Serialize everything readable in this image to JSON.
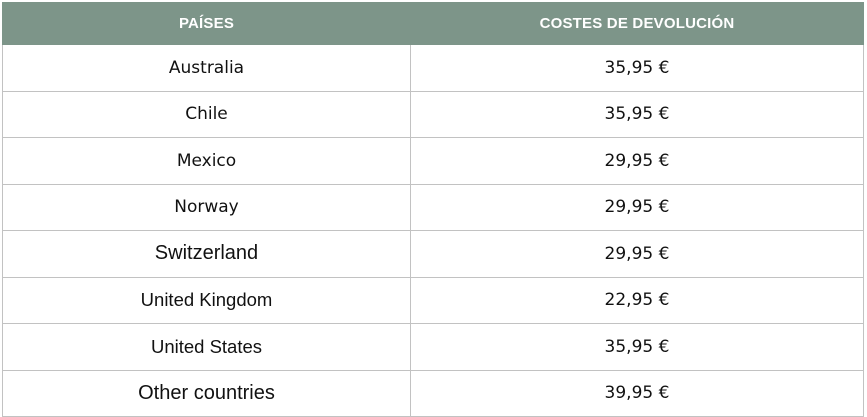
{
  "table": {
    "headers": {
      "country": "PAÍSES",
      "cost": "COSTES DE DEVOLUCIÓN"
    },
    "rows": [
      {
        "country": "Australia",
        "cost": "35,95 €"
      },
      {
        "country": "Chile",
        "cost": "35,95 €"
      },
      {
        "country": "Mexico",
        "cost": "29,95 €"
      },
      {
        "country": "Norway",
        "cost": "29,95 €"
      },
      {
        "country": "Switzerland",
        "cost": "29,95 €"
      },
      {
        "country": "United Kingdom",
        "cost": "22,95 €"
      },
      {
        "country": "United States",
        "cost": "35,95 €"
      },
      {
        "country": "Other countries",
        "cost": "39,95 €"
      }
    ]
  },
  "colors": {
    "header_bg": "#7d9589",
    "header_text": "#ffffff",
    "grid_line": "#c2c2c2"
  }
}
